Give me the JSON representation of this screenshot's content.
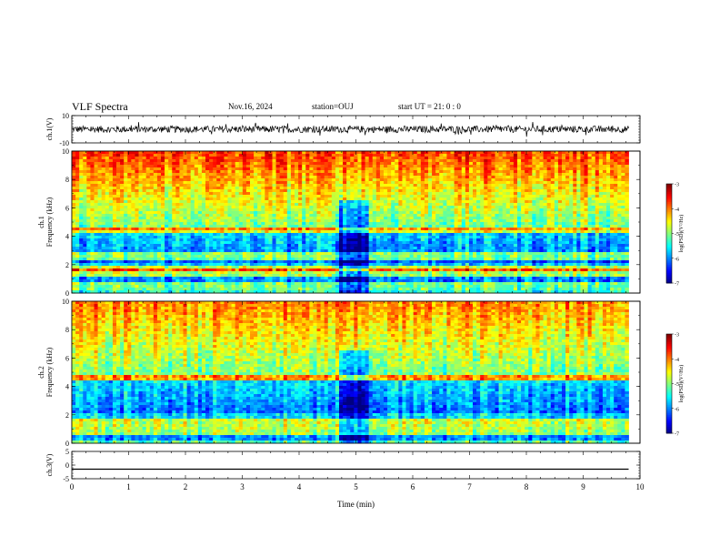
{
  "header": {
    "title": "VLF Spectra",
    "date": "Nov.16, 2024",
    "station": "station=OUJ",
    "start_ut": "start  UT =   21: 0  : 0"
  },
  "chart_data": [
    {
      "type": "line",
      "panel": "waveform-ch1",
      "ylabel": "ch.1(V)",
      "ylim": [
        -10,
        10
      ],
      "yticks": [
        10,
        -10
      ],
      "xlim": [
        0,
        10
      ],
      "data_end_min": 9.8,
      "series": [
        {
          "values_description_mean": 0.0,
          "approx_amplitude": 2.5
        }
      ]
    },
    {
      "type": "heatmap",
      "panel": "spectrogram-ch1",
      "ylabel": "ch.1\nFrequency (kHz)",
      "ylim": [
        0,
        10
      ],
      "yticks": [
        0,
        2,
        4,
        6,
        8,
        10
      ],
      "xlim": [
        0,
        10
      ],
      "data_end_min": 9.8,
      "colorbar": {
        "label": "log(PSD)(V²/Hz)",
        "range": [
          -7,
          -3
        ],
        "ticks": [
          -3,
          -4,
          -5,
          -6,
          -7
        ]
      }
    },
    {
      "type": "heatmap",
      "panel": "spectrogram-ch2",
      "ylabel": "ch.2\nFrequency (kHz)",
      "ylim": [
        0,
        10
      ],
      "yticks": [
        0,
        2,
        4,
        6,
        8,
        10
      ],
      "xlim": [
        0,
        10
      ],
      "data_end_min": 9.8,
      "colorbar": {
        "label": "log(PSD)(V²/Hz)",
        "range": [
          -7,
          -3
        ],
        "ticks": [
          -3,
          -4,
          -5,
          -6,
          -7
        ]
      }
    },
    {
      "type": "line",
      "panel": "waveform-ch3",
      "ylabel": "ch.3(V)",
      "ylim": [
        -5,
        5
      ],
      "yticks": [
        5,
        0,
        -5
      ],
      "xlim": [
        0,
        10
      ],
      "data_end_min": 9.8,
      "series": [
        {
          "constant_value": -1.5
        }
      ]
    }
  ],
  "xaxis": {
    "label": "Time (min)",
    "ticks": [
      "0",
      "1",
      "2",
      "3",
      "4",
      "5",
      "6",
      "7",
      "8",
      "9",
      "10"
    ]
  }
}
